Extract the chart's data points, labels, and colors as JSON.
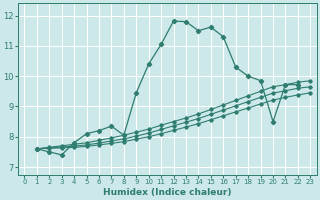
{
  "xlabel": "Humidex (Indice chaleur)",
  "bg_color": "#cce8e8",
  "line_color": "#2e7d6e",
  "grid_color": "#ffffff",
  "xlim": [
    -0.5,
    23.5
  ],
  "ylim": [
    6.75,
    12.4
  ],
  "xticks": [
    0,
    1,
    2,
    3,
    4,
    5,
    6,
    7,
    8,
    9,
    10,
    11,
    12,
    13,
    14,
    15,
    16,
    17,
    18,
    19,
    20,
    21,
    22,
    23
  ],
  "yticks": [
    7,
    8,
    9,
    10,
    11,
    12
  ],
  "series": [
    {
      "x": [
        1,
        2,
        3,
        4,
        5,
        6,
        7,
        8,
        9,
        10,
        11,
        12,
        13,
        14,
        15,
        16,
        17,
        18,
        19,
        20,
        21,
        22
      ],
      "y": [
        7.6,
        7.5,
        7.4,
        7.8,
        8.1,
        8.2,
        8.35,
        8.05,
        9.45,
        10.4,
        11.05,
        11.82,
        11.8,
        11.5,
        11.62,
        11.3,
        10.3,
        10.0,
        9.85,
        8.5,
        9.72,
        9.72
      ]
    },
    {
      "x": [
        1,
        2,
        3,
        4,
        5,
        6,
        7,
        8,
        9,
        10,
        11,
        12,
        13,
        14,
        15,
        16,
        17,
        18,
        19,
        20,
        21,
        22,
        23
      ],
      "y": [
        7.6,
        7.65,
        7.7,
        7.75,
        7.8,
        7.88,
        7.96,
        8.05,
        8.15,
        8.25,
        8.38,
        8.5,
        8.62,
        8.75,
        8.9,
        9.05,
        9.2,
        9.35,
        9.5,
        9.65,
        9.72,
        9.8,
        9.85
      ]
    },
    {
      "x": [
        1,
        2,
        3,
        4,
        5,
        6,
        7,
        8,
        9,
        10,
        11,
        12,
        13,
        14,
        15,
        16,
        17,
        18,
        19,
        20,
        21,
        22,
        23
      ],
      "y": [
        7.6,
        7.63,
        7.66,
        7.69,
        7.73,
        7.79,
        7.86,
        7.93,
        8.02,
        8.12,
        8.24,
        8.36,
        8.48,
        8.6,
        8.74,
        8.88,
        9.02,
        9.16,
        9.3,
        9.44,
        9.52,
        9.6,
        9.65
      ]
    },
    {
      "x": [
        1,
        2,
        3,
        4,
        5,
        6,
        7,
        8,
        9,
        10,
        11,
        12,
        13,
        14,
        15,
        16,
        17,
        18,
        19,
        20,
        21,
        22,
        23
      ],
      "y": [
        7.6,
        7.62,
        7.63,
        7.65,
        7.68,
        7.73,
        7.78,
        7.84,
        7.92,
        8.0,
        8.1,
        8.21,
        8.32,
        8.43,
        8.56,
        8.69,
        8.82,
        8.95,
        9.08,
        9.21,
        9.3,
        9.38,
        9.45
      ]
    }
  ]
}
